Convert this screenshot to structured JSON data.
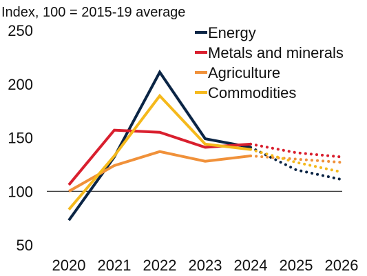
{
  "chart_data": {
    "type": "line",
    "title": "",
    "xlabel": "",
    "ylabel": "Index, 100 = 2015-19 average",
    "x": [
      "2020",
      "2021",
      "2022",
      "2023",
      "2024",
      "2025",
      "2026"
    ],
    "ylim": [
      50,
      250
    ],
    "yticks": [
      "250",
      "200",
      "150",
      "100",
      "50"
    ],
    "reference_line": 100,
    "grid": false,
    "legend_position": "top-right",
    "actual_through": "2024",
    "projection_style": "dotted",
    "series": [
      {
        "name": "Energy",
        "color": "#0b2545",
        "values": [
          73,
          132,
          211,
          149,
          141,
          120,
          111
        ]
      },
      {
        "name": "Metals and minerals",
        "color": "#d91f2e",
        "values": [
          106,
          157,
          155,
          141,
          144,
          136,
          132
        ]
      },
      {
        "name": "Agriculture",
        "color": "#f0913a",
        "values": [
          100,
          124,
          137,
          128,
          133,
          130,
          127
        ]
      },
      {
        "name": "Commodities",
        "color": "#f5b91c",
        "values": [
          83,
          133,
          189,
          144,
          139,
          127,
          118
        ]
      }
    ]
  }
}
